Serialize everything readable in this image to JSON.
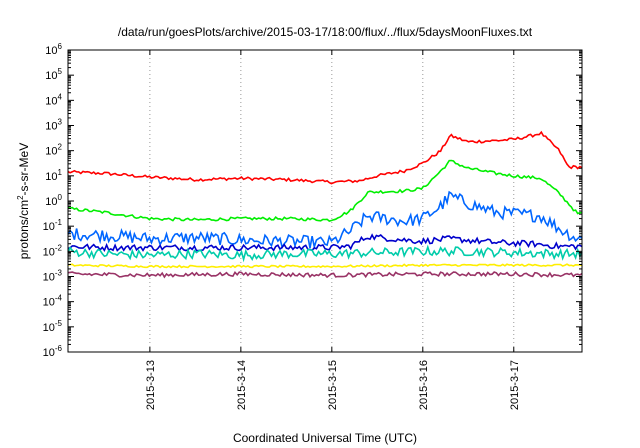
{
  "chart_data": {
    "type": "line",
    "title": "/data/run/goesPlots/archive/2015-03-17/18:00/flux/../flux/5daysMoonFluxes.txt",
    "xlabel": "Coordinated Universal Time (UTC)",
    "ylabel": {
      "pre": "protons/cm",
      "sup": "2",
      "post": "-s-sr-MeV"
    },
    "yscale": "log",
    "ylim_exp": [
      -6,
      6
    ],
    "ytick_exponents": [
      "-6",
      "-5",
      "-4",
      "-3",
      "-2",
      "-1",
      "0",
      "1",
      "2",
      "3",
      "4",
      "5",
      "6"
    ],
    "xlim_days": [
      12.1,
      17.75
    ],
    "xticks": [
      {
        "day": 13,
        "label": "2015-3-13"
      },
      {
        "day": 14,
        "label": "2015-3-14"
      },
      {
        "day": 15,
        "label": "2015-3-15"
      },
      {
        "day": 16,
        "label": "2015-3-16"
      },
      {
        "day": 17,
        "label": "2015-3-17"
      }
    ],
    "grid": "vertical-dotted",
    "legend": "none",
    "series": [
      {
        "color": "#ff0000",
        "noise": 0.06,
        "x": [
          12.1,
          12.5,
          13.0,
          13.5,
          14.0,
          14.5,
          15.0,
          15.3,
          15.5,
          15.8,
          16.0,
          16.2,
          16.3,
          16.5,
          16.8,
          17.0,
          17.2,
          17.3,
          17.5,
          17.6,
          17.75
        ],
        "log10": [
          1.15,
          1.1,
          0.95,
          0.85,
          0.9,
          0.85,
          0.75,
          0.8,
          1.0,
          1.2,
          1.5,
          2.0,
          2.6,
          2.35,
          2.4,
          2.45,
          2.6,
          2.7,
          2.0,
          1.35,
          1.35
        ]
      },
      {
        "color": "#00ee00",
        "noise": 0.06,
        "x": [
          12.1,
          12.5,
          13.0,
          13.5,
          14.0,
          14.5,
          15.0,
          15.2,
          15.4,
          15.8,
          16.0,
          16.2,
          16.3,
          16.5,
          16.8,
          17.0,
          17.3,
          17.5,
          17.7,
          17.75
        ],
        "log10": [
          -0.3,
          -0.45,
          -0.7,
          -0.75,
          -0.7,
          -0.7,
          -0.75,
          -0.4,
          0.35,
          0.4,
          0.5,
          1.2,
          1.6,
          1.3,
          1.1,
          1.0,
          0.9,
          0.3,
          -0.5,
          -0.5
        ]
      },
      {
        "color": "#0066ff",
        "noise": 0.25,
        "x": [
          12.1,
          12.5,
          13.0,
          13.5,
          14.0,
          14.5,
          15.0,
          15.2,
          15.4,
          15.8,
          16.0,
          16.2,
          16.3,
          16.5,
          16.8,
          17.0,
          17.3,
          17.5,
          17.7,
          17.75
        ],
        "log10": [
          -1.3,
          -1.35,
          -1.5,
          -1.45,
          -1.55,
          -1.6,
          -1.65,
          -1.2,
          -0.6,
          -0.8,
          -0.7,
          -0.2,
          0.2,
          -0.1,
          -0.45,
          -0.5,
          -0.6,
          -1.1,
          -1.5,
          -1.5
        ]
      },
      {
        "color": "#0000cc",
        "noise": 0.12,
        "x": [
          12.1,
          12.5,
          13.0,
          13.5,
          14.0,
          14.5,
          15.0,
          15.2,
          15.4,
          15.8,
          16.0,
          16.3,
          16.8,
          17.2,
          17.5,
          17.75
        ],
        "log10": [
          -1.8,
          -1.85,
          -1.85,
          -1.85,
          -1.85,
          -1.85,
          -1.85,
          -1.8,
          -1.4,
          -1.55,
          -1.6,
          -1.5,
          -1.65,
          -1.7,
          -1.8,
          -1.8
        ]
      },
      {
        "color": "#00ccaa",
        "noise": 0.18,
        "x": [
          12.1,
          12.5,
          13.0,
          13.5,
          14.0,
          14.5,
          15.0,
          15.5,
          16.0,
          16.5,
          17.0,
          17.5,
          17.75
        ],
        "log10": [
          -2.0,
          -2.1,
          -2.15,
          -2.1,
          -2.15,
          -2.1,
          -2.1,
          -2.05,
          -2.0,
          -2.0,
          -2.05,
          -2.1,
          -2.1
        ]
      },
      {
        "color": "#ffee00",
        "noise": 0.04,
        "x": [
          12.1,
          13.0,
          14.0,
          15.0,
          16.0,
          17.0,
          17.75
        ],
        "log10": [
          -2.55,
          -2.6,
          -2.6,
          -2.6,
          -2.55,
          -2.55,
          -2.55
        ]
      },
      {
        "color": "#993366",
        "noise": 0.08,
        "x": [
          12.1,
          13.0,
          14.0,
          15.0,
          16.0,
          17.0,
          17.75
        ],
        "log10": [
          -2.9,
          -2.95,
          -2.9,
          -2.95,
          -2.9,
          -2.9,
          -2.95
        ]
      }
    ]
  }
}
